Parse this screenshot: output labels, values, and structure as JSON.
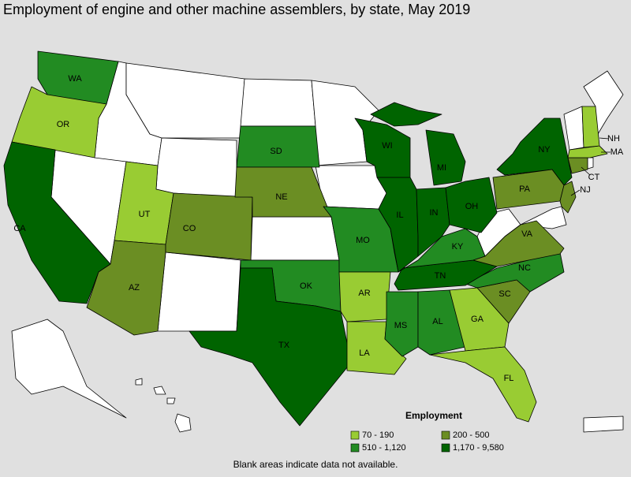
{
  "title": "Employment of engine and other machine assemblers, by state, May 2019",
  "states": [
    {
      "label": "WA",
      "bin": 2
    },
    {
      "label": "OR",
      "bin": 0
    },
    {
      "label": "CA",
      "bin": 3
    },
    {
      "label": "UT",
      "bin": 0
    },
    {
      "label": "AZ",
      "bin": 1
    },
    {
      "label": "CO",
      "bin": 1
    },
    {
      "label": "SD",
      "bin": 2
    },
    {
      "label": "NE",
      "bin": 1
    },
    {
      "label": "OK",
      "bin": 2
    },
    {
      "label": "TX",
      "bin": 3
    },
    {
      "label": "MO",
      "bin": 2
    },
    {
      "label": "AR",
      "bin": 0
    },
    {
      "label": "LA",
      "bin": 0
    },
    {
      "label": "MS",
      "bin": 2
    },
    {
      "label": "AL",
      "bin": 2
    },
    {
      "label": "GA",
      "bin": 0
    },
    {
      "label": "FL",
      "bin": 0
    },
    {
      "label": "SC",
      "bin": 1
    },
    {
      "label": "NC",
      "bin": 2
    },
    {
      "label": "TN",
      "bin": 3
    },
    {
      "label": "KY",
      "bin": 2
    },
    {
      "label": "VA",
      "bin": 1
    },
    {
      "label": "IL",
      "bin": 3
    },
    {
      "label": "IN",
      "bin": 3
    },
    {
      "label": "OH",
      "bin": 3
    },
    {
      "label": "MI",
      "bin": 3
    },
    {
      "label": "WI",
      "bin": 3
    },
    {
      "label": "NY",
      "bin": 3
    },
    {
      "label": "PA",
      "bin": 1
    },
    {
      "label": "NJ",
      "bin": 1
    },
    {
      "label": "CT",
      "bin": 1
    },
    {
      "label": "MA",
      "bin": 0
    },
    {
      "label": "NH",
      "bin": 0
    }
  ],
  "legend": {
    "title": "Employment",
    "items": [
      {
        "label": "70 - 190",
        "color": "#99cc33"
      },
      {
        "label": "200 - 500",
        "color": "#6b8e23"
      },
      {
        "label": "510 - 1,120",
        "color": "#228b22"
      },
      {
        "label": "1,170 - 9,580",
        "color": "#006400"
      }
    ]
  },
  "footnote": "Blank areas indicate data not available."
}
